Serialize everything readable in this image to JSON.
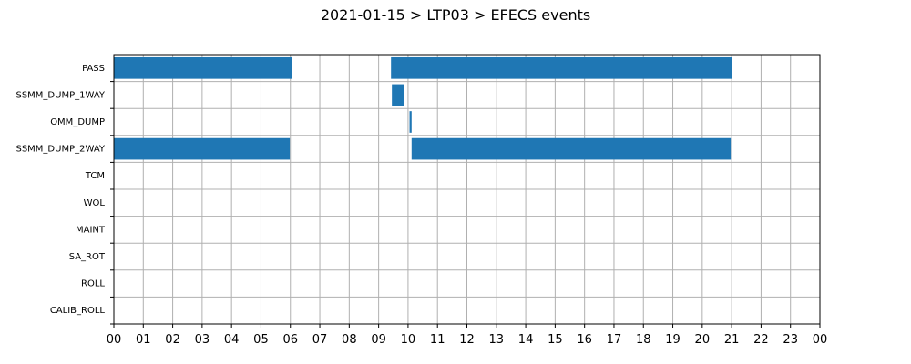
{
  "chart_data": {
    "type": "bar",
    "title": "2021-01-15 > LTP03 > EFECS events",
    "xlim": [
      0,
      24
    ],
    "x_tick_labels": [
      "00",
      "01",
      "02",
      "03",
      "04",
      "05",
      "06",
      "07",
      "08",
      "09",
      "10",
      "11",
      "12",
      "13",
      "14",
      "15",
      "16",
      "17",
      "18",
      "19",
      "20",
      "21",
      "22",
      "23",
      "00"
    ],
    "categories": [
      "PASS",
      "SSMM_DUMP_1WAY",
      "OMM_DUMP",
      "SSMM_DUMP_2WAY",
      "TCM",
      "WOL",
      "MAINT",
      "SA_ROT",
      "ROLL",
      "CALIB_ROLL"
    ],
    "grid": true,
    "bar_color": "#1f77b4",
    "events": [
      {
        "category": "PASS",
        "start": 0.0,
        "end": 6.05
      },
      {
        "category": "PASS",
        "start": 9.42,
        "end": 21.0
      },
      {
        "category": "SSMM_DUMP_1WAY",
        "start": 9.45,
        "end": 9.85
      },
      {
        "category": "OMM_DUMP",
        "start": 10.05,
        "end": 10.12
      },
      {
        "category": "SSMM_DUMP_2WAY",
        "start": 0.0,
        "end": 5.98
      },
      {
        "category": "SSMM_DUMP_2WAY",
        "start": 10.12,
        "end": 20.97
      }
    ]
  }
}
